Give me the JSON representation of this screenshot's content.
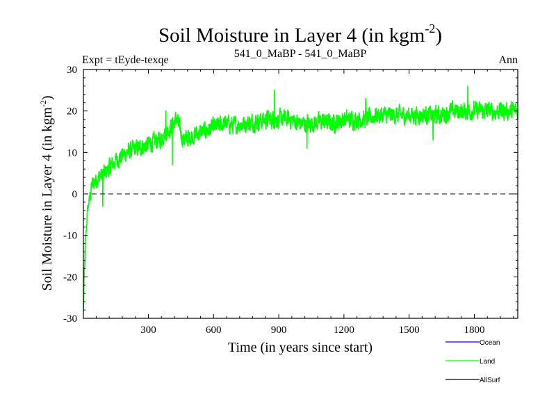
{
  "chart_data": {
    "type": "line",
    "title": "Soil Moisture in Layer 4 (in kgm",
    "title_sup": "-2",
    "title_close": ")",
    "subtitle_left": "Expt = tEyde-texqe",
    "subtitle_center": "541_0_MaBP - 541_0_MaBP",
    "subtitle_right": "Ann",
    "xlabel": "Time (in years since start)",
    "ylabel": "Soil Moisture in Layer 4 (in kgm",
    "ylabel_sup": "-2",
    "ylabel_close": ")",
    "xlim": [
      1,
      2000
    ],
    "ylim": [
      -30,
      30
    ],
    "xticks": [
      300,
      600,
      900,
      1200,
      1500,
      1800
    ],
    "xtick_labels": [
      "300",
      "600",
      "900",
      "1200",
      "1500",
      "1800"
    ],
    "yticks": [
      -30,
      -20,
      -10,
      0,
      10,
      20,
      30
    ],
    "ytick_labels": [
      "-30",
      "-20",
      "-10",
      "0",
      "10",
      "20",
      "30"
    ],
    "reference_line": 0,
    "series": [
      {
        "name": "Land",
        "color": "#00ff00",
        "trend_points": [
          [
            1,
            -28
          ],
          [
            5,
            -20
          ],
          [
            10,
            -12
          ],
          [
            20,
            -4
          ],
          [
            40,
            2
          ],
          [
            70,
            4
          ],
          [
            100,
            5
          ],
          [
            150,
            8
          ],
          [
            200,
            10
          ],
          [
            250,
            11
          ],
          [
            300,
            12
          ],
          [
            350,
            13
          ],
          [
            400,
            16
          ],
          [
            430,
            18
          ],
          [
            460,
            13
          ],
          [
            500,
            14
          ],
          [
            550,
            15
          ],
          [
            600,
            16
          ],
          [
            650,
            17
          ],
          [
            700,
            16.5
          ],
          [
            750,
            17
          ],
          [
            800,
            17.5
          ],
          [
            850,
            18
          ],
          [
            900,
            18
          ],
          [
            950,
            18
          ],
          [
            1000,
            17
          ],
          [
            1050,
            17
          ],
          [
            1100,
            17.5
          ],
          [
            1150,
            17
          ],
          [
            1200,
            18
          ],
          [
            1250,
            18
          ],
          [
            1300,
            18
          ],
          [
            1350,
            19
          ],
          [
            1400,
            19
          ],
          [
            1450,
            19
          ],
          [
            1500,
            19
          ],
          [
            1550,
            19
          ],
          [
            1600,
            19
          ],
          [
            1650,
            19
          ],
          [
            1700,
            20
          ],
          [
            1750,
            20
          ],
          [
            1800,
            20
          ],
          [
            1850,
            20
          ],
          [
            1900,
            20
          ],
          [
            1950,
            20
          ],
          [
            2000,
            20
          ]
        ],
        "noise_amplitude": 2.5,
        "peak_points": [
          [
            380,
            20
          ],
          [
            880,
            25
          ],
          [
            1300,
            23
          ],
          [
            1770,
            26
          ]
        ],
        "trough_points": [
          [
            90,
            -3
          ],
          [
            410,
            7
          ],
          [
            1030,
            11
          ],
          [
            1610,
            13
          ]
        ]
      },
      {
        "name": "Ocean",
        "color": "#0000ff"
      },
      {
        "name": "AllSurf",
        "color": "#000000"
      }
    ],
    "legend": [
      "Ocean",
      "Land",
      "AllSurf"
    ],
    "legend_position": "bottom-right"
  }
}
